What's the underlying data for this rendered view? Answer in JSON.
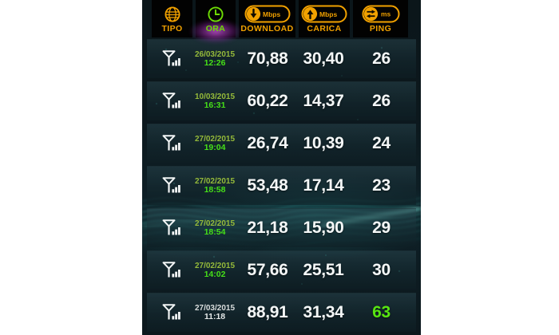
{
  "header": {
    "columns": [
      {
        "label": "TIPO",
        "icon": "globe-icon",
        "unit": "",
        "selected": false
      },
      {
        "label": "ORA",
        "icon": "clock-icon",
        "unit": "",
        "selected": true
      },
      {
        "label": "DOWNLOAD",
        "icon": "download-arrow-icon",
        "unit": "Mbps",
        "selected": false
      },
      {
        "label": "CARICA",
        "icon": "upload-arrow-icon",
        "unit": "Mbps",
        "selected": false
      },
      {
        "label": "PING",
        "icon": "ping-arrows-icon",
        "unit": "ms",
        "selected": false
      }
    ]
  },
  "rows": [
    {
      "type": "cellular",
      "date": "26/03/2015",
      "time": "12:26",
      "download": "70,88",
      "upload": "30,40",
      "ping": "26",
      "date_color": "green",
      "ping_color": "white"
    },
    {
      "type": "cellular",
      "date": "10/03/2015",
      "time": "16:31",
      "download": "60,22",
      "upload": "14,37",
      "ping": "26",
      "date_color": "green",
      "ping_color": "white"
    },
    {
      "type": "cellular",
      "date": "27/02/2015",
      "time": "19:04",
      "download": "26,74",
      "upload": "10,39",
      "ping": "24",
      "date_color": "green",
      "ping_color": "white"
    },
    {
      "type": "cellular",
      "date": "27/02/2015",
      "time": "18:58",
      "download": "53,48",
      "upload": "17,14",
      "ping": "23",
      "date_color": "green",
      "ping_color": "white"
    },
    {
      "type": "cellular",
      "date": "27/02/2015",
      "time": "18:54",
      "download": "21,18",
      "upload": "15,90",
      "ping": "29",
      "date_color": "green",
      "ping_color": "white"
    },
    {
      "type": "cellular",
      "date": "27/02/2015",
      "time": "14:02",
      "download": "57,66",
      "upload": "25,51",
      "ping": "30",
      "date_color": "green",
      "ping_color": "white"
    },
    {
      "type": "cellular",
      "date": "27/03/2015",
      "time": "11:18",
      "download": "88,91",
      "upload": "31,34",
      "ping": "63",
      "date_color": "white",
      "ping_color": "green"
    }
  ],
  "colors": {
    "accent_orange": "#f1a100",
    "accent_green": "#6fdc04",
    "date_green": "#95ba3a",
    "time_green": "#46e018",
    "value_white": "#f4f7f7",
    "selected_glow": "#b83fc9",
    "wave_cyan": "#49d8cc",
    "header_bg": "#020202",
    "app_bg": "#0c181d"
  }
}
